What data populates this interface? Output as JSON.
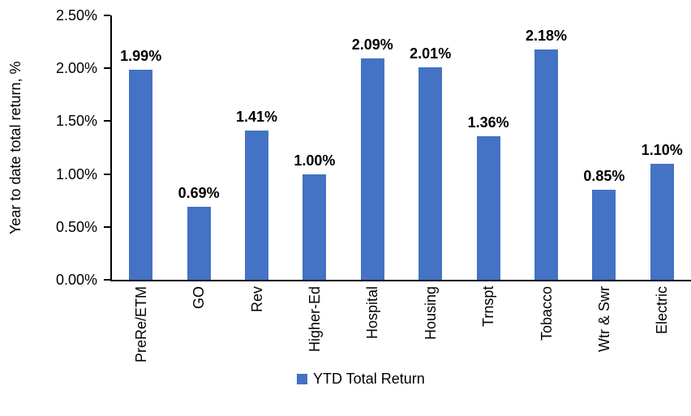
{
  "chart_data": {
    "type": "bar",
    "title": "",
    "ylabel": "Year to date total return, %",
    "xlabel": "",
    "categories": [
      "PreRe/ETM",
      "GO",
      "Rev",
      "Higher-Ed",
      "Hospital",
      "Housing",
      "Trnspt",
      "Tobacco",
      "Wtr & Swr",
      "Electric"
    ],
    "values": [
      1.99,
      0.69,
      1.41,
      1.0,
      2.09,
      2.01,
      1.36,
      2.18,
      0.85,
      1.1
    ],
    "data_labels": [
      "1.99%",
      "0.69%",
      "1.41%",
      "1.00%",
      "2.09%",
      "2.01%",
      "1.36%",
      "2.18%",
      "0.85%",
      "1.10%"
    ],
    "y_ticks": [
      "0.00%",
      "0.50%",
      "1.00%",
      "1.50%",
      "2.00%",
      "2.50%"
    ],
    "ylim": [
      0,
      2.5
    ],
    "grid": false,
    "bar_color": "#4472C4",
    "axis_color": "#000000",
    "legend": {
      "label": "YTD Total Return",
      "position": "bottom"
    }
  }
}
